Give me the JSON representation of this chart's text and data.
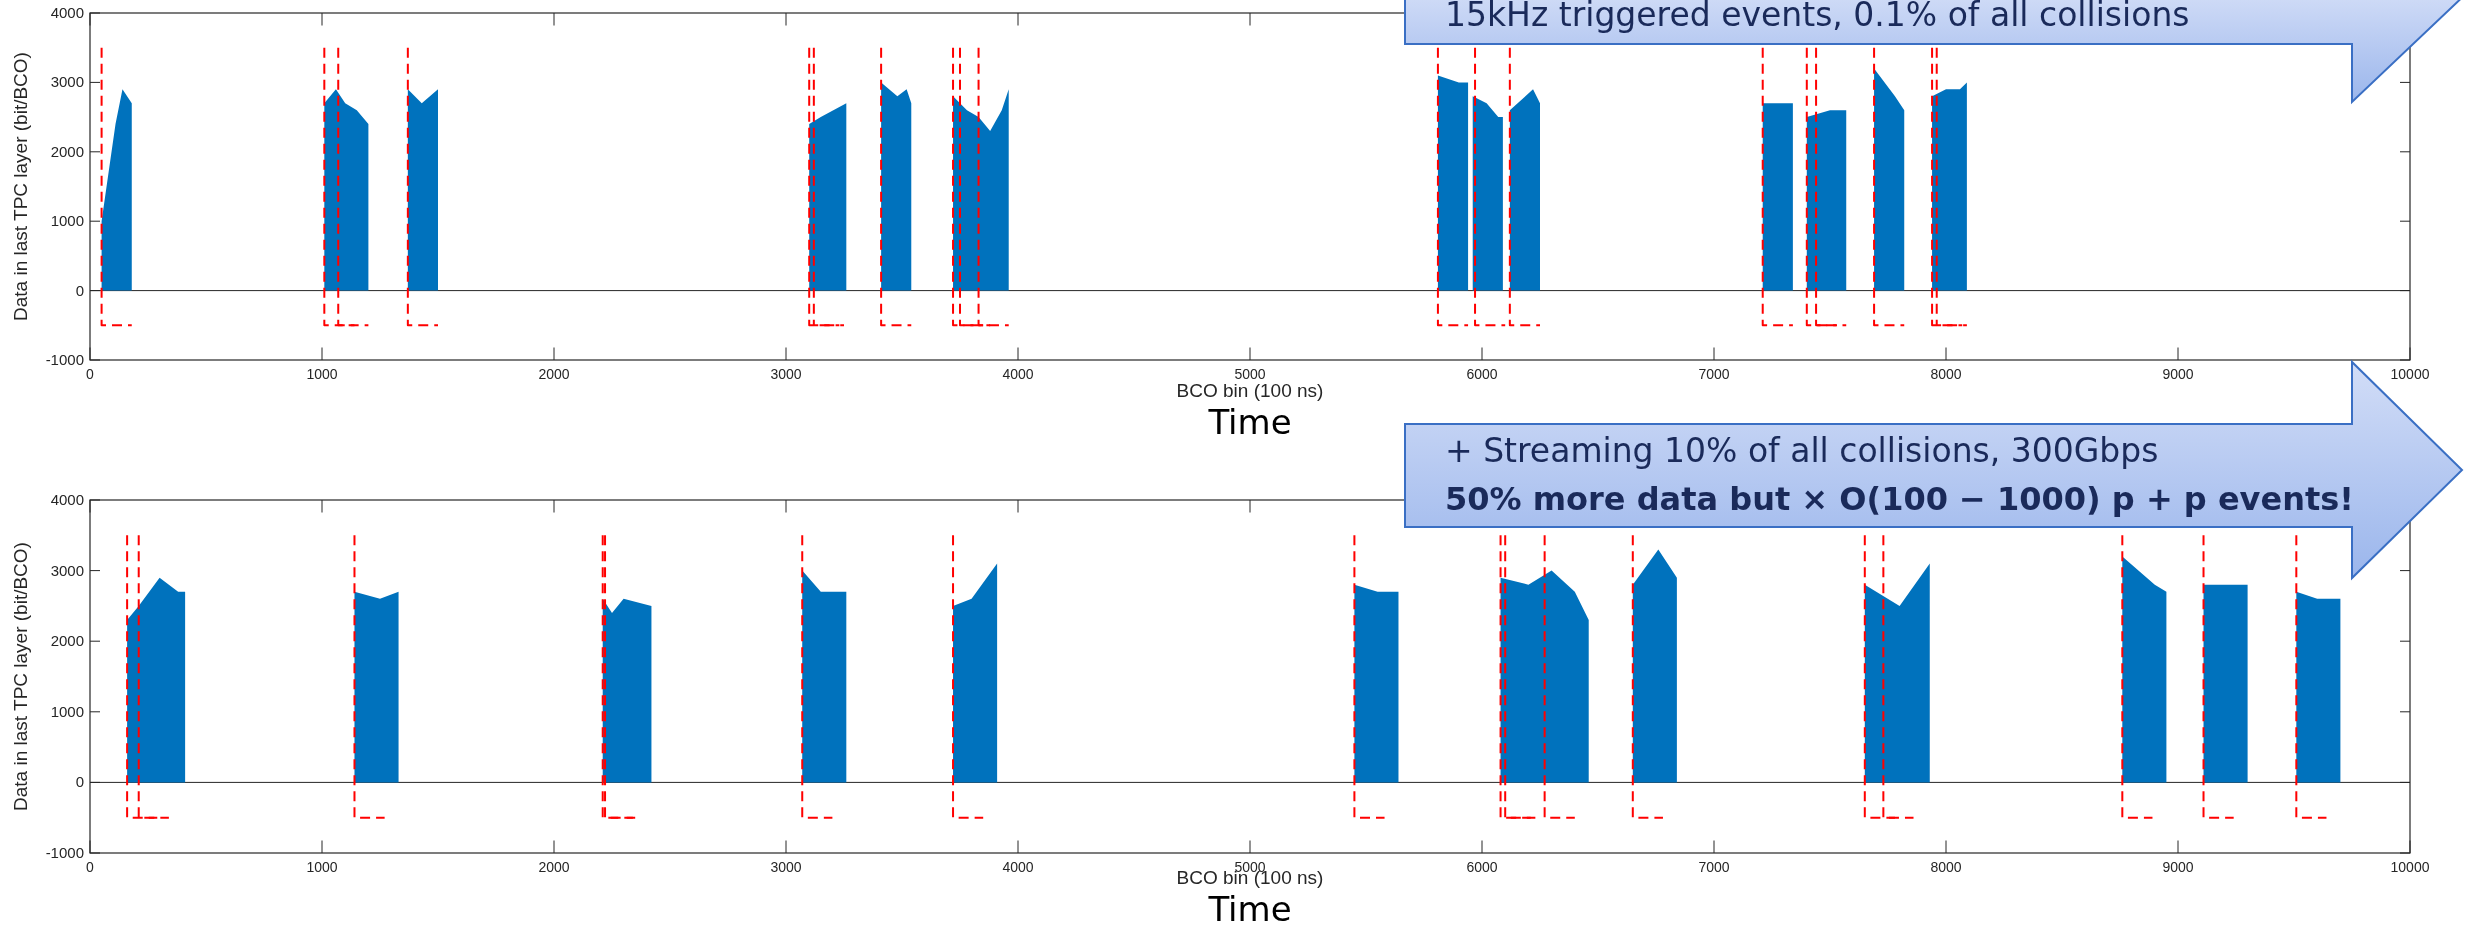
{
  "chart_data": [
    {
      "type": "area",
      "xlabel": "BCO bin (100 ns)",
      "ylabel": "Data in last TPC layer (bit/BCO)",
      "xlim": [
        0,
        10000
      ],
      "ylim": [
        -1000,
        4000
      ],
      "xticks": [
        0,
        1000,
        2000,
        3000,
        4000,
        5000,
        6000,
        7000,
        8000,
        9000,
        10000
      ],
      "yticks": [
        -1000,
        0,
        1000,
        2000,
        3000,
        4000
      ],
      "annotations": [
        "Time",
        "15kHz triggered events, 0.1% of all collisions"
      ],
      "series": [
        {
          "type": "area",
          "color": "#0072bd",
          "x": [
            50,
            80,
            110,
            140,
            180,
            600,
            1010,
            1060,
            1100,
            1150,
            1200,
            1280,
            1370,
            1430,
            1500,
            2300,
            3100,
            3150,
            3260,
            3330,
            3410,
            3480,
            3520,
            3540,
            3630,
            3720,
            3780,
            3830,
            3880,
            3930,
            3960,
            4900,
            5810,
            5900,
            5940,
            5950,
            5960,
            6020,
            6070,
            6090,
            6105,
            6120,
            6220,
            6250,
            6700,
            7210,
            7340,
            7370,
            7400,
            7500,
            7570,
            7630,
            7690,
            7780,
            7820,
            7880,
            7940,
            8000,
            8060,
            8090
          ],
          "values": [
            1000,
            1700,
            2400,
            2900,
            2700,
            null,
            2700,
            2900,
            2700,
            2600,
            2400,
            null,
            2900,
            2700,
            2900,
            null,
            2400,
            2500,
            2700,
            null,
            3000,
            2800,
            2900,
            2700,
            null,
            2800,
            2600,
            2500,
            2300,
            2600,
            2900,
            null,
            3100,
            3000,
            3000,
            null,
            2800,
            2700,
            2500,
            2500,
            null,
            2600,
            2900,
            2700,
            null,
            2700,
            2700,
            null,
            2500,
            2600,
            2600,
            null,
            3200,
            2800,
            2600,
            null,
            2800,
            2900,
            2900,
            3000
          ]
        },
        {
          "type": "line",
          "color": "#ff0000",
          "line_style": "dashed",
          "x": [
            50,
            50,
            180
          ],
          "values": [
            3500,
            -500,
            -500
          ]
        },
        {
          "type": "line",
          "color": "#ff0000",
          "line_style": "dashed",
          "x": [
            1010,
            1010,
            1140
          ],
          "values": [
            3500,
            -500,
            -500
          ]
        },
        {
          "type": "line",
          "color": "#ff0000",
          "line_style": "dashed",
          "x": [
            1070,
            1070,
            1200
          ],
          "values": [
            3500,
            -500,
            -500
          ]
        },
        {
          "type": "line",
          "color": "#ff0000",
          "line_style": "dashed",
          "x": [
            1370,
            1370,
            1500
          ],
          "values": [
            3500,
            -500,
            -500
          ]
        },
        {
          "type": "line",
          "color": "#ff0000",
          "line_style": "dashed",
          "x": [
            3100,
            3100,
            3230
          ],
          "values": [
            3500,
            -500,
            -500
          ]
        },
        {
          "type": "line",
          "color": "#ff0000",
          "line_style": "dashed",
          "x": [
            3120,
            3120,
            3250
          ],
          "values": [
            3500,
            -500,
            -500
          ]
        },
        {
          "type": "line",
          "color": "#ff0000",
          "line_style": "dashed",
          "x": [
            3410,
            3410,
            3540
          ],
          "values": [
            3500,
            -500,
            -500
          ]
        },
        {
          "type": "line",
          "color": "#ff0000",
          "line_style": "dashed",
          "x": [
            3720,
            3720,
            3850
          ],
          "values": [
            3500,
            -500,
            -500
          ]
        },
        {
          "type": "line",
          "color": "#ff0000",
          "line_style": "dashed",
          "x": [
            3750,
            3750,
            3880
          ],
          "values": [
            3500,
            -500,
            -500
          ]
        },
        {
          "type": "line",
          "color": "#ff0000",
          "line_style": "dashed",
          "x": [
            3830,
            3830,
            3960
          ],
          "values": [
            3500,
            -500,
            -500
          ]
        },
        {
          "type": "line",
          "color": "#ff0000",
          "line_style": "dashed",
          "x": [
            5810,
            5810,
            5940
          ],
          "values": [
            3500,
            -500,
            -500
          ]
        },
        {
          "type": "line",
          "color": "#ff0000",
          "line_style": "dashed",
          "x": [
            5970,
            5970,
            6100
          ],
          "values": [
            3500,
            -500,
            -500
          ]
        },
        {
          "type": "line",
          "color": "#ff0000",
          "line_style": "dashed",
          "x": [
            6120,
            6120,
            6250
          ],
          "values": [
            3500,
            -500,
            -500
          ]
        },
        {
          "type": "line",
          "color": "#ff0000",
          "line_style": "dashed",
          "x": [
            7210,
            7210,
            7340
          ],
          "values": [
            3500,
            -500,
            -500
          ]
        },
        {
          "type": "line",
          "color": "#ff0000",
          "line_style": "dashed",
          "x": [
            7400,
            7400,
            7530
          ],
          "values": [
            3500,
            -500,
            -500
          ]
        },
        {
          "type": "line",
          "color": "#ff0000",
          "line_style": "dashed",
          "x": [
            7440,
            7440,
            7570
          ],
          "values": [
            3500,
            -500,
            -500
          ]
        },
        {
          "type": "line",
          "color": "#ff0000",
          "line_style": "dashed",
          "x": [
            7690,
            7690,
            7820
          ],
          "values": [
            3500,
            -500,
            -500
          ]
        },
        {
          "type": "line",
          "color": "#ff0000",
          "line_style": "dashed",
          "x": [
            7940,
            7940,
            8070
          ],
          "values": [
            3500,
            -500,
            -500
          ]
        },
        {
          "type": "line",
          "color": "#ff0000",
          "line_style": "dashed",
          "x": [
            7960,
            7960,
            8090
          ],
          "values": [
            3500,
            -500,
            -500
          ]
        }
      ]
    },
    {
      "type": "area",
      "xlabel": "BCO bin (100 ns)",
      "ylabel": "Data in last TPC layer (bit/BCO)",
      "xlim": [
        0,
        10000
      ],
      "ylim": [
        -1000,
        4000
      ],
      "xticks": [
        0,
        1000,
        2000,
        3000,
        4000,
        5000,
        6000,
        7000,
        8000,
        9000,
        10000
      ],
      "yticks": [
        -1000,
        0,
        1000,
        2000,
        3000,
        4000
      ],
      "annotations": [
        "Time",
        "+ Streaming 10% of all collisions, 300Gbps",
        "50% more data but × O(100 − 1000) p + p events!"
      ],
      "series": [
        {
          "type": "area",
          "color": "#0072bd",
          "x": [
            160,
            210,
            300,
            380,
            410,
            800,
            1140,
            1250,
            1330,
            1800,
            2210,
            2250,
            2300,
            2420,
            2700,
            3070,
            3150,
            3260,
            3500,
            3720,
            3800,
            3910,
            4700,
            5450,
            5550,
            5640,
            5900,
            6080,
            6200,
            6300,
            6400,
            6460,
            6550,
            6650,
            6760,
            6840,
            7200,
            7650,
            7800,
            7930,
            8300,
            8760,
            8900,
            8950,
            9000,
            9110,
            9300,
            9400,
            9510,
            9600,
            9700
          ],
          "values": [
            2300,
            2500,
            2900,
            2700,
            2700,
            null,
            2700,
            2600,
            2700,
            null,
            2600,
            2400,
            2600,
            2500,
            null,
            3000,
            2700,
            2700,
            null,
            2500,
            2600,
            3100,
            null,
            2800,
            2700,
            2700,
            null,
            2900,
            2800,
            3000,
            2700,
            2300,
            null,
            2800,
            3300,
            2900,
            null,
            2800,
            2500,
            3100,
            null,
            3200,
            2800,
            2700,
            null,
            2800,
            2800,
            null,
            2700,
            2600,
            2600
          ]
        },
        {
          "type": "line",
          "color": "#ff0000",
          "line_style": "dashed",
          "x": [
            160,
            160,
            290
          ],
          "values": [
            3500,
            -500,
            -500
          ]
        },
        {
          "type": "line",
          "color": "#ff0000",
          "line_style": "dashed",
          "x": [
            210,
            210,
            340
          ],
          "values": [
            3500,
            -500,
            -500
          ]
        },
        {
          "type": "line",
          "color": "#ff0000",
          "line_style": "dashed",
          "x": [
            1140,
            1140,
            1270
          ],
          "values": [
            3500,
            -500,
            -500
          ]
        },
        {
          "type": "line",
          "color": "#ff0000",
          "line_style": "dashed",
          "x": [
            2210,
            2210,
            2340
          ],
          "values": [
            3500,
            -500,
            -500
          ]
        },
        {
          "type": "line",
          "color": "#ff0000",
          "line_style": "dashed",
          "x": [
            2220,
            2220,
            2350
          ],
          "values": [
            3500,
            -500,
            -500
          ]
        },
        {
          "type": "line",
          "color": "#ff0000",
          "line_style": "dashed",
          "x": [
            3070,
            3070,
            3200
          ],
          "values": [
            3500,
            -500,
            -500
          ]
        },
        {
          "type": "line",
          "color": "#ff0000",
          "line_style": "dashed",
          "x": [
            3720,
            3720,
            3850
          ],
          "values": [
            3500,
            -500,
            -500
          ]
        },
        {
          "type": "line",
          "color": "#ff0000",
          "line_style": "dashed",
          "x": [
            5450,
            5450,
            5580
          ],
          "values": [
            3500,
            -500,
            -500
          ]
        },
        {
          "type": "line",
          "color": "#ff0000",
          "line_style": "dashed",
          "x": [
            6080,
            6080,
            6210
          ],
          "values": [
            3500,
            -500,
            -500
          ]
        },
        {
          "type": "line",
          "color": "#ff0000",
          "line_style": "dashed",
          "x": [
            6100,
            6100,
            6230
          ],
          "values": [
            3500,
            -500,
            -500
          ]
        },
        {
          "type": "line",
          "color": "#ff0000",
          "line_style": "dashed",
          "x": [
            6270,
            6270,
            6400
          ],
          "values": [
            3500,
            -500,
            -500
          ]
        },
        {
          "type": "line",
          "color": "#ff0000",
          "line_style": "dashed",
          "x": [
            6650,
            6650,
            6780
          ],
          "values": [
            3500,
            -500,
            -500
          ]
        },
        {
          "type": "line",
          "color": "#ff0000",
          "line_style": "dashed",
          "x": [
            7650,
            7650,
            7780
          ],
          "values": [
            3500,
            -500,
            -500
          ]
        },
        {
          "type": "line",
          "color": "#ff0000",
          "line_style": "dashed",
          "x": [
            7730,
            7730,
            7860
          ],
          "values": [
            3500,
            -500,
            -500
          ]
        },
        {
          "type": "line",
          "color": "#ff0000",
          "line_style": "dashed",
          "x": [
            8760,
            8760,
            8890
          ],
          "values": [
            3500,
            -500,
            -500
          ]
        },
        {
          "type": "line",
          "color": "#ff0000",
          "line_style": "dashed",
          "x": [
            9110,
            9110,
            9240
          ],
          "values": [
            3500,
            -500,
            -500
          ]
        },
        {
          "type": "line",
          "color": "#ff0000",
          "line_style": "dashed",
          "x": [
            9510,
            9510,
            9640
          ],
          "values": [
            3500,
            -500,
            -500
          ]
        }
      ]
    }
  ]
}
